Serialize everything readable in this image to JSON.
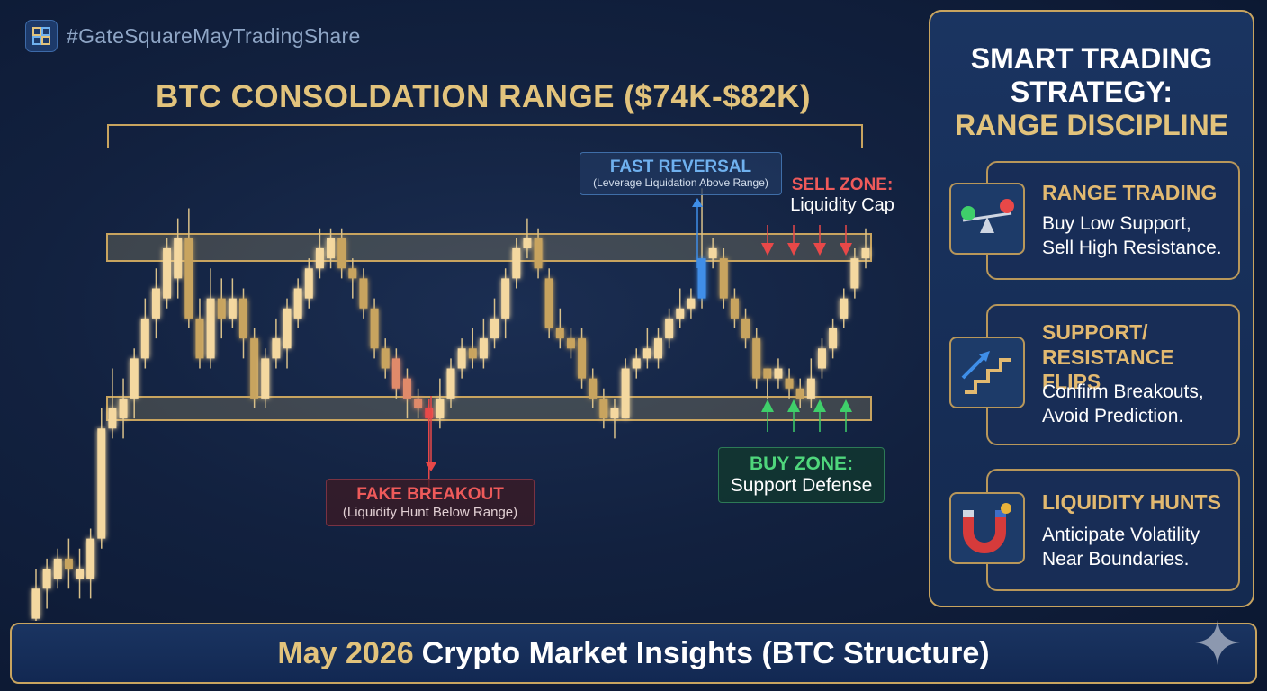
{
  "hashtag": "#GateSquareMayTradingShare",
  "chart": {
    "title": "BTC CONSOLDATION RANGE ($74K-$82K)",
    "callouts": {
      "fast_reversal": {
        "title": "FAST REVERSAL",
        "subtitle": "(Leverage Liquidation Above Range)"
      },
      "sell_zone": {
        "title": "SELL ZONE:",
        "subtitle": "Liquidity Cap"
      },
      "fake_breakout": {
        "title": "FAKE BREAKOUT",
        "subtitle": "(Liquidity Hunt Below Range)"
      },
      "buy_zone": {
        "title": "BUY ZONE:",
        "subtitle": "Support Defense"
      }
    }
  },
  "chart_data": {
    "type": "candlestick",
    "range": {
      "support_k": 74,
      "resistance_k": 82
    },
    "candles": [
      {
        "o": 1,
        "c": 4,
        "h": 6,
        "l": -2
      },
      {
        "o": 4,
        "c": 6,
        "h": 7,
        "l": 2
      },
      {
        "o": 5,
        "c": 7,
        "h": 8,
        "l": 4
      },
      {
        "o": 7,
        "c": 6,
        "h": 9,
        "l": 4
      },
      {
        "o": 5,
        "c": 6,
        "h": 8,
        "l": 3
      },
      {
        "o": 5,
        "c": 9,
        "h": 10,
        "l": 3
      },
      {
        "o": 9,
        "c": 20,
        "h": 22,
        "l": 8
      },
      {
        "o": 20,
        "c": 22,
        "h": 26,
        "l": 19
      },
      {
        "o": 21,
        "c": 23,
        "h": 25,
        "l": 19
      },
      {
        "o": 23,
        "c": 27,
        "h": 28,
        "l": 21
      },
      {
        "o": 27,
        "c": 31,
        "h": 33,
        "l": 26
      },
      {
        "o": 31,
        "c": 34,
        "h": 36,
        "l": 29
      },
      {
        "o": 33,
        "c": 38,
        "h": 39,
        "l": 32
      },
      {
        "o": 35,
        "c": 39,
        "h": 41,
        "l": 33
      },
      {
        "o": 39,
        "c": 31,
        "h": 42,
        "l": 30
      },
      {
        "o": 31,
        "c": 27,
        "h": 33,
        "l": 26
      },
      {
        "o": 27,
        "c": 33,
        "h": 36,
        "l": 26
      },
      {
        "o": 33,
        "c": 31,
        "h": 35,
        "l": 29
      },
      {
        "o": 31,
        "c": 33,
        "h": 35,
        "l": 30
      },
      {
        "o": 33,
        "c": 29,
        "h": 34,
        "l": 27
      },
      {
        "o": 29,
        "c": 23,
        "h": 30,
        "l": 22
      },
      {
        "o": 23,
        "c": 27,
        "h": 28,
        "l": 22
      },
      {
        "o": 27,
        "c": 29,
        "h": 31,
        "l": 26
      },
      {
        "o": 28,
        "c": 32,
        "h": 33,
        "l": 26
      },
      {
        "o": 31,
        "c": 34,
        "h": 35,
        "l": 30
      },
      {
        "o": 33,
        "c": 36,
        "h": 37,
        "l": 32
      },
      {
        "o": 36,
        "c": 38,
        "h": 40,
        "l": 35
      },
      {
        "o": 37,
        "c": 39,
        "h": 40,
        "l": 36
      },
      {
        "o": 39,
        "c": 36,
        "h": 40,
        "l": 35
      },
      {
        "o": 36,
        "c": 35,
        "h": 37,
        "l": 33
      },
      {
        "o": 35,
        "c": 32,
        "h": 36,
        "l": 31
      },
      {
        "o": 32,
        "c": 28,
        "h": 33,
        "l": 27
      },
      {
        "o": 28,
        "c": 26,
        "h": 29,
        "l": 25
      },
      {
        "o": 27,
        "c": 24,
        "h": 28,
        "l": 23
      },
      {
        "o": 25,
        "c": 23,
        "h": 26,
        "l": 21
      },
      {
        "o": 23,
        "c": 22,
        "h": 24,
        "l": 21
      },
      {
        "o": 22,
        "c": 21,
        "h": 23,
        "l": 14
      },
      {
        "o": 21,
        "c": 23,
        "h": 25,
        "l": 20
      },
      {
        "o": 23,
        "c": 26,
        "h": 27,
        "l": 22
      },
      {
        "o": 26,
        "c": 28,
        "h": 29,
        "l": 25
      },
      {
        "o": 28,
        "c": 27,
        "h": 30,
        "l": 26
      },
      {
        "o": 27,
        "c": 29,
        "h": 31,
        "l": 26
      },
      {
        "o": 29,
        "c": 31,
        "h": 33,
        "l": 28
      },
      {
        "o": 31,
        "c": 35,
        "h": 36,
        "l": 29
      },
      {
        "o": 35,
        "c": 38,
        "h": 39,
        "l": 34
      },
      {
        "o": 38,
        "c": 39,
        "h": 41,
        "l": 37
      },
      {
        "o": 39,
        "c": 36,
        "h": 40,
        "l": 35
      },
      {
        "o": 35,
        "c": 30,
        "h": 36,
        "l": 29
      },
      {
        "o": 30,
        "c": 29,
        "h": 32,
        "l": 28
      },
      {
        "o": 29,
        "c": 28,
        "h": 30,
        "l": 27
      },
      {
        "o": 29,
        "c": 25,
        "h": 30,
        "l": 24
      },
      {
        "o": 25,
        "c": 23,
        "h": 26,
        "l": 22
      },
      {
        "o": 23,
        "c": 21,
        "h": 24,
        "l": 20
      },
      {
        "o": 21,
        "c": 22,
        "h": 23,
        "l": 19
      },
      {
        "o": 21,
        "c": 26,
        "h": 27,
        "l": 21
      },
      {
        "o": 26,
        "c": 27,
        "h": 28,
        "l": 25
      },
      {
        "o": 27,
        "c": 28,
        "h": 30,
        "l": 26
      },
      {
        "o": 27,
        "c": 29,
        "h": 30,
        "l": 26
      },
      {
        "o": 29,
        "c": 31,
        "h": 32,
        "l": 28
      },
      {
        "o": 31,
        "c": 32,
        "h": 34,
        "l": 30
      },
      {
        "o": 32,
        "c": 33,
        "h": 34,
        "l": 31
      },
      {
        "o": 33,
        "c": 37,
        "h": 44,
        "l": 32
      },
      {
        "o": 37,
        "c": 38,
        "h": 39,
        "l": 36
      },
      {
        "o": 37,
        "c": 33,
        "h": 38,
        "l": 32
      },
      {
        "o": 33,
        "c": 31,
        "h": 34,
        "l": 30
      },
      {
        "o": 31,
        "c": 29,
        "h": 32,
        "l": 28
      },
      {
        "o": 29,
        "c": 25,
        "h": 30,
        "l": 24
      },
      {
        "o": 26,
        "c": 25,
        "h": 26,
        "l": 23
      },
      {
        "o": 25,
        "c": 26,
        "h": 27,
        "l": 24
      },
      {
        "o": 25,
        "c": 24,
        "h": 26,
        "l": 23
      },
      {
        "o": 24,
        "c": 23,
        "h": 25,
        "l": 22
      },
      {
        "o": 23,
        "c": 25,
        "h": 27,
        "l": 22
      },
      {
        "o": 26,
        "c": 28,
        "h": 29,
        "l": 25
      },
      {
        "o": 28,
        "c": 30,
        "h": 31,
        "l": 27
      },
      {
        "o": 31,
        "c": 33,
        "h": 34,
        "l": 30
      },
      {
        "o": 34,
        "c": 37,
        "h": 38,
        "l": 33
      },
      {
        "o": 37,
        "c": 38,
        "h": 40,
        "l": 36
      }
    ]
  },
  "panel": {
    "title_line1": "SMART TRADING STRATEGY:",
    "title_line2": "RANGE DISCIPLINE",
    "cards": [
      {
        "icon": "balance-scale-icon",
        "title": "RANGE TRADING",
        "desc1": "Buy Low Support,",
        "desc2": "Sell High Resistance."
      },
      {
        "icon": "rising-steps-icon",
        "title1": "SUPPORT/",
        "title2": "RESISTANCE FLIPS",
        "desc1": "Confirm Breakouts,",
        "desc2": "Avoid Prediction."
      },
      {
        "icon": "magnet-icon",
        "title": "LIQUIDITY HUNTS",
        "desc1": "Anticipate Volatility",
        "desc2": "Near Boundaries."
      }
    ]
  },
  "footer": {
    "month": "May 2026",
    "rest": "Crypto Market Insights (BTC Structure)"
  },
  "colors": {
    "gold": "#e2c37c",
    "bull": "#f4d8a0",
    "bear": "#c8a45f",
    "red": "#e84848",
    "green": "#3fcf6a",
    "blue": "#3f8ee8"
  }
}
